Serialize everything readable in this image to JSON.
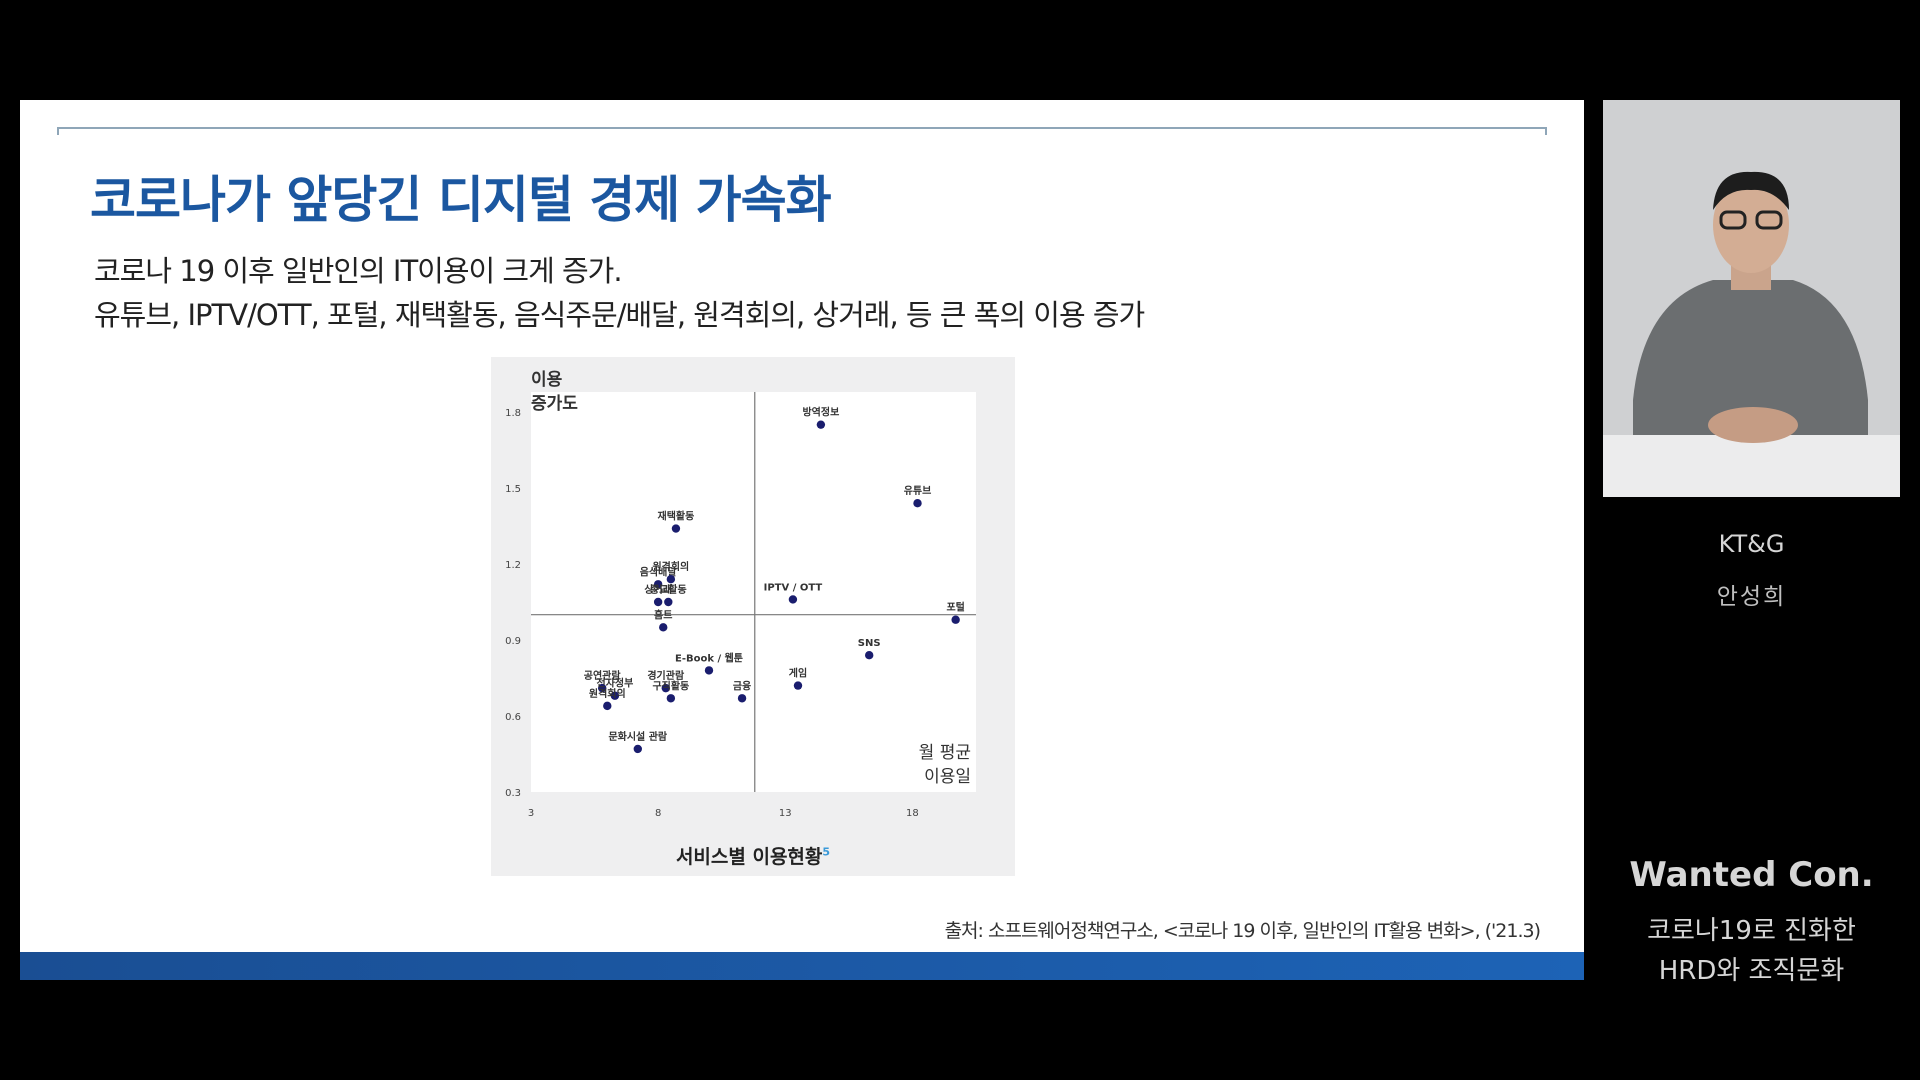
{
  "slide": {
    "title": "코로나가 앞당긴 디지털 경제 가속화",
    "subtitle_line1": "코로나 19 이후 일반인의 IT이용이 크게 증가.",
    "subtitle_line2": "유튜브, IPTV/OTT, 포털, 재택활동, 음식주문/배달, 원격회의, 상거래, 등 큰 폭의 이용 증가",
    "source": "출처: 소프트웨어정책연구소, <코로나 19 이후, 일반인의 IT활용 변화>, ('21.3)"
  },
  "chart_data": {
    "type": "scatter",
    "title": "서비스별 이용현황",
    "title_footnote": "5",
    "ylabel_line1": "이용",
    "ylabel_line2": "증가도",
    "xlabel_line1": "월 평균",
    "xlabel_line2": "이용일",
    "xlim": [
      3,
      20.5
    ],
    "ylim": [
      0.3,
      1.8
    ],
    "x_ticks": [
      "3",
      "8",
      "13",
      "18"
    ],
    "y_ticks": [
      "0.3",
      "0.6",
      "0.9",
      "1.2",
      "1.5",
      "1.8"
    ],
    "divider": {
      "x": 11.8,
      "y": 1.0
    },
    "points": [
      {
        "label": "방역정보",
        "x": 14.4,
        "y": 1.75
      },
      {
        "label": "유튜브",
        "x": 18.2,
        "y": 1.44
      },
      {
        "label": "재택활동",
        "x": 8.7,
        "y": 1.34
      },
      {
        "label": "음식배달",
        "x": 8.0,
        "y": 1.12
      },
      {
        "label": "원격회의",
        "x": 8.5,
        "y": 1.14
      },
      {
        "label": "상거래",
        "x": 8.0,
        "y": 1.05
      },
      {
        "label": "종교활동",
        "x": 8.4,
        "y": 1.05
      },
      {
        "label": "IPTV / OTT",
        "x": 13.3,
        "y": 1.06
      },
      {
        "label": "포털",
        "x": 19.7,
        "y": 0.98
      },
      {
        "label": "홈트",
        "x": 8.2,
        "y": 0.95
      },
      {
        "label": "SNS",
        "x": 16.3,
        "y": 0.84
      },
      {
        "label": "E-Book / 웹툰",
        "x": 10.0,
        "y": 0.78
      },
      {
        "label": "게임",
        "x": 13.5,
        "y": 0.72
      },
      {
        "label": "공연관람",
        "x": 5.8,
        "y": 0.71
      },
      {
        "label": "경기관람",
        "x": 8.3,
        "y": 0.71
      },
      {
        "label": "전자정부",
        "x": 6.3,
        "y": 0.68
      },
      {
        "label": "금융",
        "x": 11.3,
        "y": 0.67
      },
      {
        "label": "구직활동",
        "x": 8.5,
        "y": 0.67
      },
      {
        "label": "원격회의",
        "x": 6.0,
        "y": 0.64
      },
      {
        "label": "문화시설 관람",
        "x": 7.2,
        "y": 0.47
      }
    ],
    "point_color": "#1a1d6e"
  },
  "sidebar": {
    "org": "KT&G",
    "speaker": "안성희",
    "event": "Wanted Con.",
    "talk_line1": "코로나19로 진화한",
    "talk_line2": "HRD와 조직문화"
  }
}
